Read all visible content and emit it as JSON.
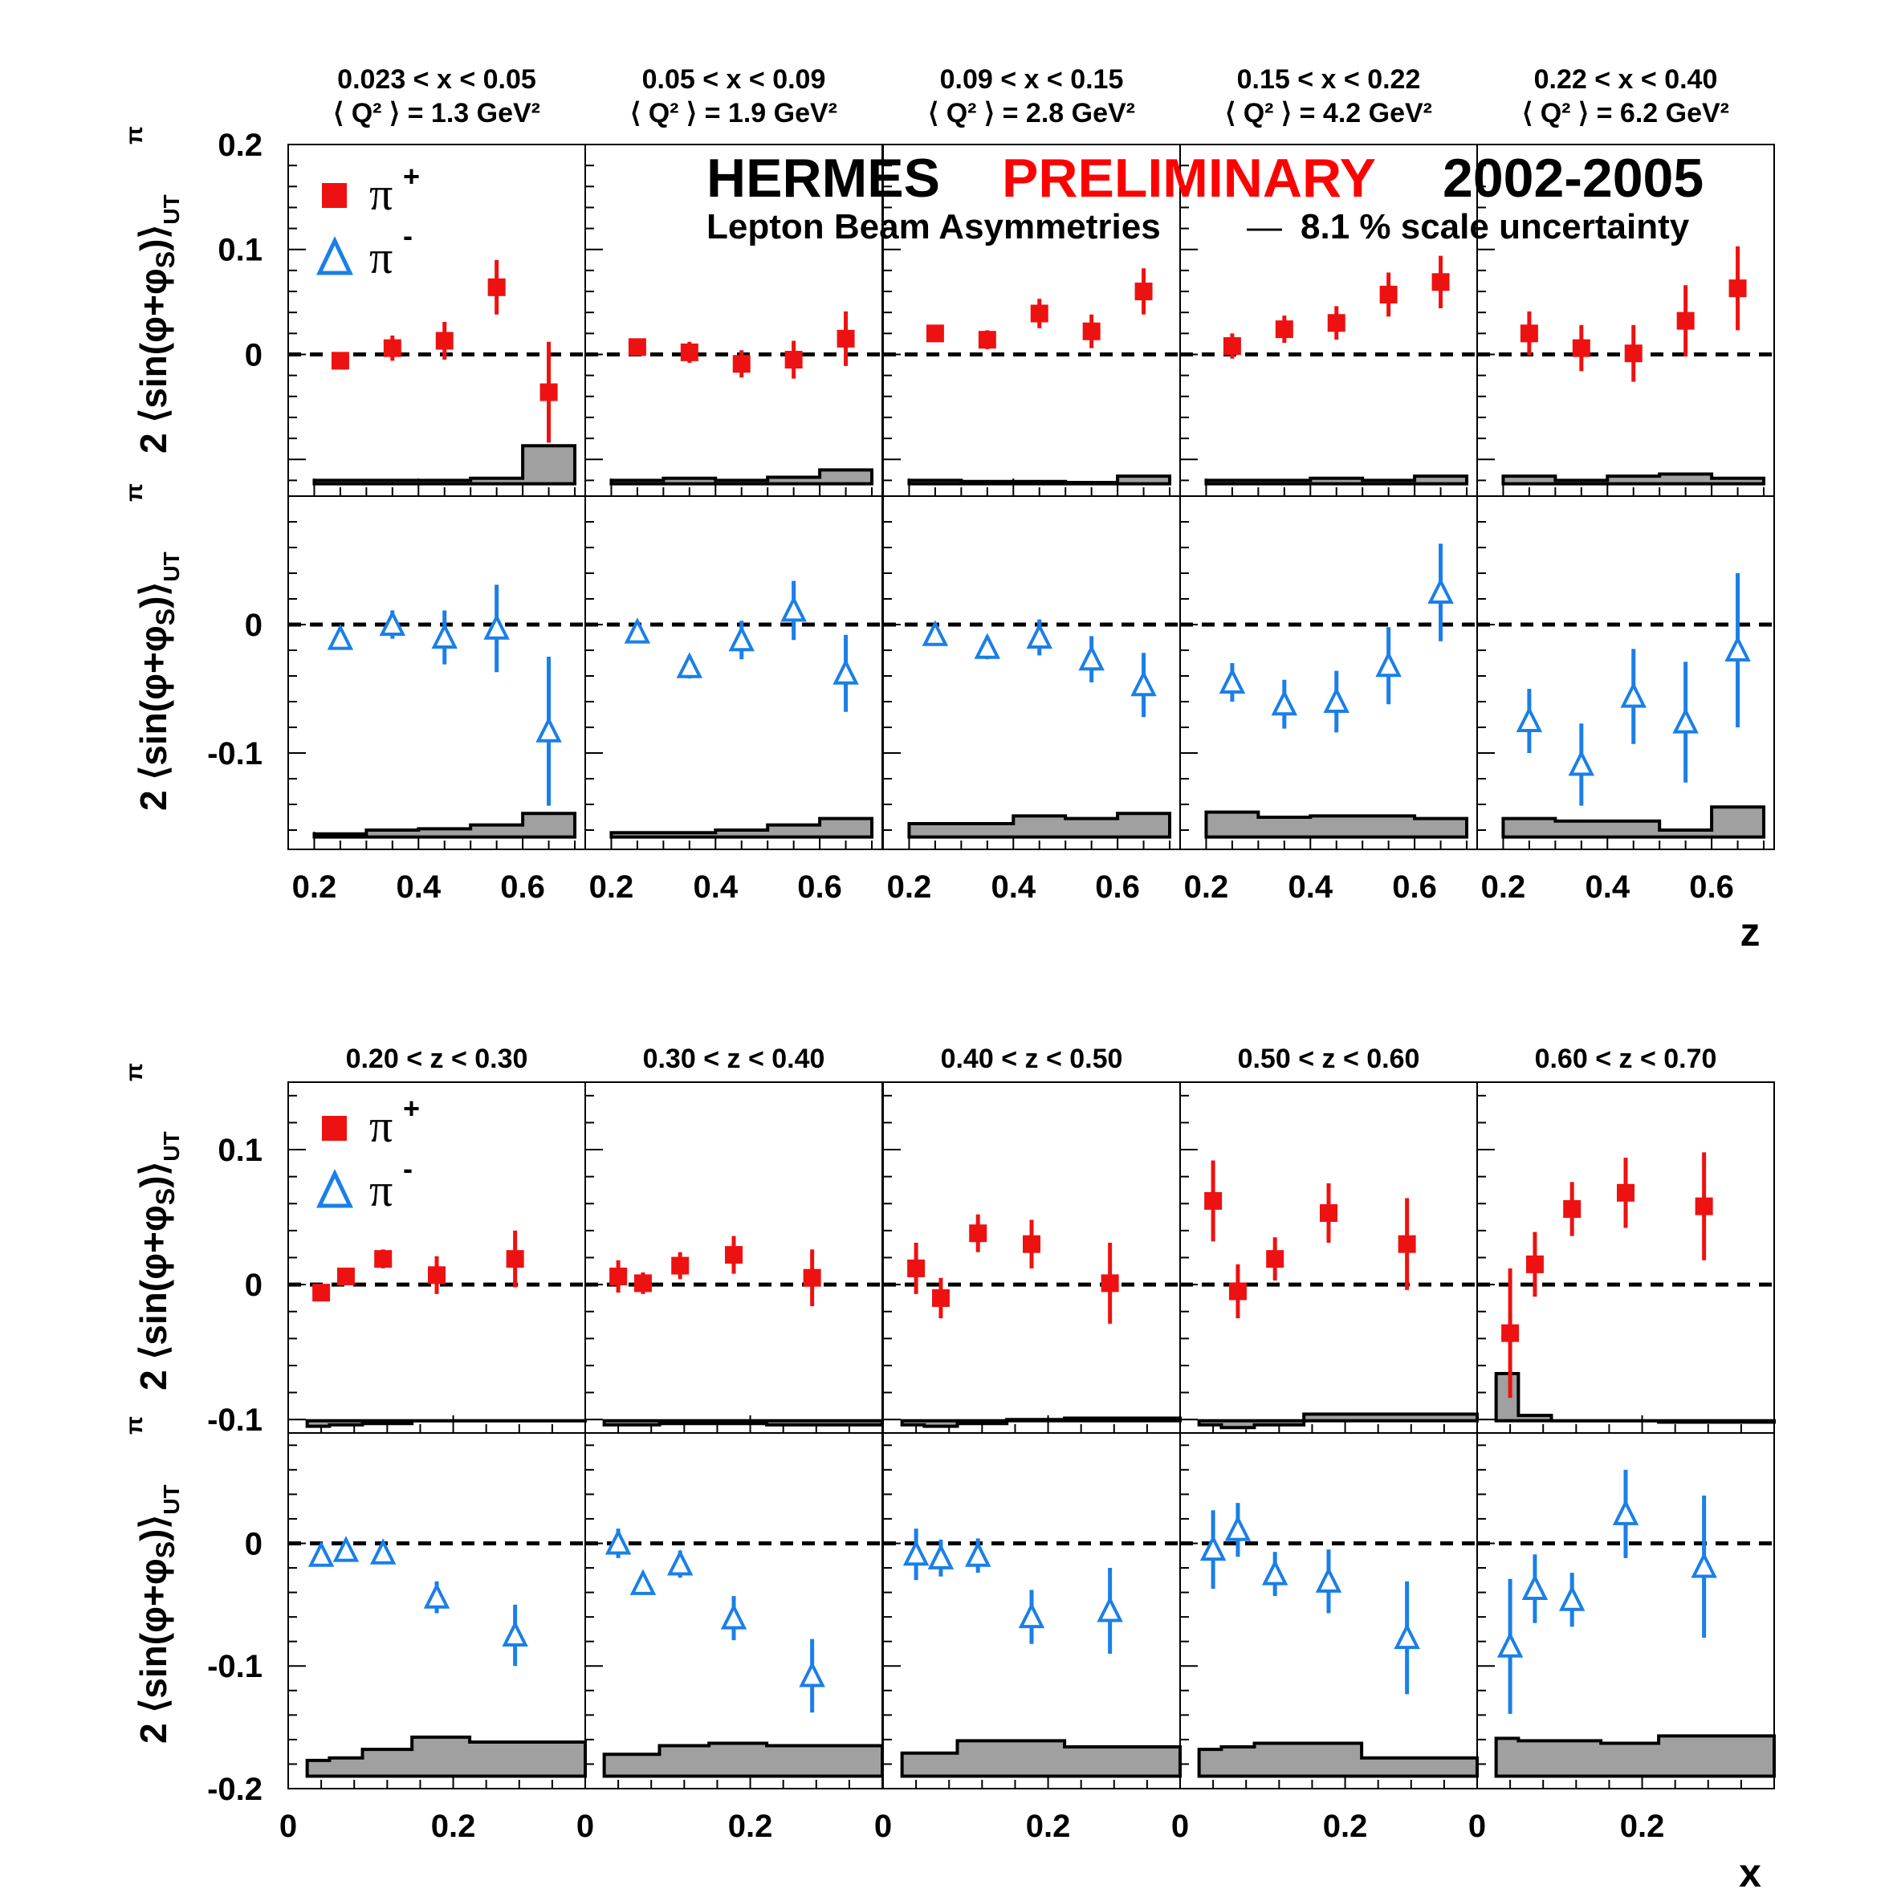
{
  "banner": {
    "word1": "HERMES",
    "word2": "PRELIMINARY",
    "word3": "2002-2005",
    "subtitle": "Lepton Beam Asymmetries",
    "dash": "—",
    "scale_note": "8.1 % scale uncertainty",
    "colors": {
      "word1": "#000000",
      "word2": "#ff0000",
      "word3": "#000000"
    }
  },
  "legend": {
    "pi_plus": "π",
    "pi_plus_sup": "+",
    "pi_minus": "π",
    "pi_minus_sup": "-"
  },
  "colors": {
    "pi_plus": "#ee1111",
    "pi_minus": "#1a7fe8",
    "band_fill": "#a0a0a0",
    "zero_line": "#000000"
  },
  "ylabel": {
    "prefix": "2 ⟨sin(φ+φ",
    "sub": "S",
    "suffix": ")⟩",
    "sup": "π",
    "subUT": "UT"
  },
  "chart_data": [
    {
      "type": "scatter",
      "panel_group": "z-dependence",
      "xlabel": "z",
      "xlim": [
        0.15,
        0.72
      ],
      "x_ticks": [
        "0.2",
        "0.4",
        "0.6"
      ],
      "panel_titles": [
        {
          "line1": "0.023 < x < 0.05",
          "line2": "⟨ Q² ⟩ = 1.3 GeV²"
        },
        {
          "line1": "0.05 < x < 0.09",
          "line2": "⟨ Q² ⟩ = 1.9 GeV²"
        },
        {
          "line1": "0.09 < x < 0.15",
          "line2": "⟨ Q² ⟩ = 2.8 GeV²"
        },
        {
          "line1": "0.15 < x < 0.22",
          "line2": "⟨ Q² ⟩ = 4.2 GeV²"
        },
        {
          "line1": "0.22 < x < 0.40",
          "line2": "⟨ Q² ⟩ = 6.2 GeV²"
        }
      ],
      "bin_edges": [
        0.2,
        0.3,
        0.4,
        0.5,
        0.6,
        0.7
      ],
      "top_row": {
        "ylim": [
          -0.135,
          0.2
        ],
        "y_ticks": [
          0.2,
          0,
          0.1
        ],
        "y_tick_labels": [
          "0.2",
          "0",
          "0.1"
        ],
        "series": [
          {
            "name": "π+",
            "panels": [
              {
                "x": [
                  0.25,
                  0.35,
                  0.45,
                  0.55,
                  0.65
                ],
                "y": [
                  -0.006,
                  0.006,
                  0.013,
                  0.064,
                  -0.036
                ],
                "err": [
                  0.008,
                  0.012,
                  0.018,
                  0.026,
                  0.048
                ],
                "band": [
                  -0.12,
                  -0.12,
                  -0.12,
                  -0.118,
                  -0.087
                ]
              },
              {
                "x": [
                  0.25,
                  0.35,
                  0.45,
                  0.55,
                  0.65
                ],
                "y": [
                  0.007,
                  0.002,
                  -0.009,
                  -0.005,
                  0.015
                ],
                "err": [
                  0.006,
                  0.01,
                  0.013,
                  0.018,
                  0.026
                ],
                "band": [
                  -0.12,
                  -0.118,
                  -0.12,
                  -0.117,
                  -0.11
                ]
              },
              {
                "x": [
                  0.25,
                  0.35,
                  0.45,
                  0.55,
                  0.65
                ],
                "y": [
                  0.02,
                  0.014,
                  0.039,
                  0.022,
                  0.06
                ],
                "err": [
                  0.008,
                  0.009,
                  0.014,
                  0.016,
                  0.022
                ],
                "band": [
                  -0.12,
                  -0.121,
                  -0.121,
                  -0.122,
                  -0.116
                ]
              },
              {
                "x": [
                  0.25,
                  0.35,
                  0.45,
                  0.55,
                  0.65
                ],
                "y": [
                  0.008,
                  0.024,
                  0.03,
                  0.057,
                  0.069
                ],
                "err": [
                  0.012,
                  0.013,
                  0.016,
                  0.021,
                  0.025
                ],
                "band": [
                  -0.12,
                  -0.12,
                  -0.118,
                  -0.12,
                  -0.116
                ]
              },
              {
                "x": [
                  0.25,
                  0.35,
                  0.45,
                  0.55,
                  0.65
                ],
                "y": [
                  0.02,
                  0.006,
                  0.001,
                  0.032,
                  0.063
                ],
                "err": [
                  0.021,
                  0.022,
                  0.027,
                  0.034,
                  0.04
                ],
                "band": [
                  -0.116,
                  -0.12,
                  -0.116,
                  -0.114,
                  -0.118
                ]
              }
            ]
          }
        ]
      },
      "bottom_row": {
        "ylim": [
          -0.175,
          0.1
        ],
        "y_ticks": [
          0,
          -0.1
        ],
        "y_tick_labels": [
          "0",
          "-0.1"
        ],
        "series": [
          {
            "name": "π-",
            "panels": [
              {
                "x": [
                  0.25,
                  0.35,
                  0.45,
                  0.55,
                  0.65
                ],
                "y": [
                  -0.011,
                  0.0,
                  -0.01,
                  -0.003,
                  -0.083
                ],
                "err": [
                  0.006,
                  0.011,
                  0.021,
                  0.034,
                  0.058
                ],
                "band": [
                  -0.163,
                  -0.16,
                  -0.159,
                  -0.156,
                  -0.147
                ]
              },
              {
                "x": [
                  0.25,
                  0.35,
                  0.45,
                  0.55,
                  0.65
                ],
                "y": [
                  -0.006,
                  -0.033,
                  -0.012,
                  0.011,
                  -0.038
                ],
                "err": [
                  0.005,
                  0.009,
                  0.015,
                  0.023,
                  0.03
                ],
                "band": [
                  -0.162,
                  -0.162,
                  -0.16,
                  -0.156,
                  -0.151
                ]
              },
              {
                "x": [
                  0.25,
                  0.35,
                  0.45,
                  0.55,
                  0.65
                ],
                "y": [
                  -0.008,
                  -0.018,
                  -0.01,
                  -0.027,
                  -0.047
                ],
                "err": [
                  0.006,
                  0.009,
                  0.014,
                  0.018,
                  0.025
                ],
                "band": [
                  -0.155,
                  -0.155,
                  -0.149,
                  -0.151,
                  -0.147
                ]
              },
              {
                "x": [
                  0.25,
                  0.35,
                  0.45,
                  0.55,
                  0.65
                ],
                "y": [
                  -0.045,
                  -0.062,
                  -0.06,
                  -0.032,
                  0.025
                ],
                "err": [
                  0.015,
                  0.019,
                  0.024,
                  0.03,
                  0.038
                ],
                "band": [
                  -0.146,
                  -0.15,
                  -0.149,
                  -0.149,
                  -0.151
                ]
              },
              {
                "x": [
                  0.25,
                  0.35,
                  0.45,
                  0.55,
                  0.65
                ],
                "y": [
                  -0.075,
                  -0.109,
                  -0.056,
                  -0.076,
                  -0.02
                ],
                "err": [
                  0.025,
                  0.032,
                  0.037,
                  0.047,
                  0.06
                ],
                "band": [
                  -0.151,
                  -0.153,
                  -0.153,
                  -0.16,
                  -0.142
                ]
              }
            ]
          }
        ]
      },
      "legend": [
        "π+",
        "π-"
      ]
    },
    {
      "type": "scatter",
      "panel_group": "x-dependence",
      "xlabel": "x",
      "xlim": [
        0,
        0.36
      ],
      "x_ticks": [
        "0",
        "0.2"
      ],
      "panel_titles": [
        {
          "line1": "0.20 < z < 0.30"
        },
        {
          "line1": "0.30 < z < 0.40"
        },
        {
          "line1": "0.40 < z < 0.50"
        },
        {
          "line1": "0.50 < z < 0.60"
        },
        {
          "line1": "0.60 < z < 0.70"
        }
      ],
      "bin_edges": [
        0.023,
        0.05,
        0.09,
        0.15,
        0.22,
        0.4
      ],
      "top_row": {
        "ylim": [
          -0.11,
          0.15
        ],
        "y_ticks": [
          0.1,
          0,
          -0.1
        ],
        "y_tick_labels": [
          "0.1",
          "0",
          "-0.1"
        ],
        "series": [
          {
            "name": "π+",
            "panels": [
              {
                "x": [
                  0.04,
                  0.07,
                  0.115,
                  0.18,
                  0.275
                ],
                "y": [
                  -0.006,
                  0.006,
                  0.019,
                  0.007,
                  0.019
                ],
                "err": [
                  0.006,
                  0.005,
                  0.007,
                  0.014,
                  0.021
                ],
                "band": [
                  -0.105,
                  -0.104,
                  -0.103,
                  -0.101,
                  -0.101
                ]
              },
              {
                "x": [
                  0.04,
                  0.07,
                  0.115,
                  0.18,
                  0.275
                ],
                "y": [
                  0.006,
                  0.001,
                  0.014,
                  0.022,
                  0.005
                ],
                "err": [
                  0.012,
                  0.008,
                  0.01,
                  0.014,
                  0.021
                ],
                "band": [
                  -0.104,
                  -0.104,
                  -0.103,
                  -0.103,
                  -0.104
                ]
              },
              {
                "x": [
                  0.04,
                  0.07,
                  0.115,
                  0.18,
                  0.275
                ],
                "y": [
                  0.012,
                  -0.01,
                  0.038,
                  0.03,
                  0.001
                ],
                "err": [
                  0.019,
                  0.015,
                  0.014,
                  0.018,
                  0.03
                ],
                "band": [
                  -0.104,
                  -0.105,
                  -0.103,
                  -0.1,
                  -0.099
                ]
              },
              {
                "x": [
                  0.04,
                  0.07,
                  0.115,
                  0.18,
                  0.275
                ],
                "y": [
                  0.062,
                  -0.005,
                  0.019,
                  0.053,
                  0.03
                ],
                "err": [
                  0.03,
                  0.02,
                  0.016,
                  0.022,
                  0.034
                ],
                "band": [
                  -0.104,
                  -0.106,
                  -0.104,
                  -0.096,
                  -0.096
                ]
              },
              {
                "x": [
                  0.04,
                  0.07,
                  0.115,
                  0.18,
                  0.275
                ],
                "y": [
                  -0.036,
                  0.015,
                  0.056,
                  0.068,
                  0.058
                ],
                "err": [
                  0.048,
                  0.024,
                  0.02,
                  0.026,
                  0.04
                ],
                "band": [
                  -0.066,
                  -0.097,
                  -0.101,
                  -0.101,
                  -0.102
                ]
              }
            ]
          }
        ]
      },
      "bottom_row": {
        "ylim": [
          -0.2,
          0.09
        ],
        "y_ticks": [
          0,
          -0.1,
          -0.2
        ],
        "y_tick_labels": [
          "0",
          "-0.1",
          "-0.2"
        ],
        "series": [
          {
            "name": "π-",
            "panels": [
              {
                "x": [
                  0.04,
                  0.07,
                  0.115,
                  0.18,
                  0.275
                ],
                "y": [
                  -0.01,
                  -0.006,
                  -0.008,
                  -0.044,
                  -0.075
                ],
                "err": [
                  0.005,
                  0.004,
                  0.007,
                  0.013,
                  0.025
                ],
                "band": [
                  -0.177,
                  -0.175,
                  -0.168,
                  -0.158,
                  -0.162
                ]
              },
              {
                "x": [
                  0.04,
                  0.07,
                  0.115,
                  0.18,
                  0.275
                ],
                "y": [
                  0.0,
                  -0.033,
                  -0.017,
                  -0.061,
                  -0.108
                ],
                "err": [
                  0.012,
                  0.009,
                  0.011,
                  0.018,
                  0.03
                ],
                "band": [
                  -0.172,
                  -0.172,
                  -0.165,
                  -0.163,
                  -0.165
                ]
              },
              {
                "x": [
                  0.04,
                  0.07,
                  0.115,
                  0.18,
                  0.275
                ],
                "y": [
                  -0.009,
                  -0.012,
                  -0.01,
                  -0.06,
                  -0.055
                ],
                "err": [
                  0.021,
                  0.015,
                  0.014,
                  0.022,
                  0.035
                ],
                "band": [
                  -0.171,
                  -0.171,
                  -0.161,
                  -0.161,
                  -0.166
                ]
              },
              {
                "x": [
                  0.04,
                  0.07,
                  0.115,
                  0.18,
                  0.275
                ],
                "y": [
                  -0.005,
                  0.011,
                  -0.025,
                  -0.031,
                  -0.077
                ],
                "err": [
                  0.032,
                  0.022,
                  0.018,
                  0.026,
                  0.046
                ],
                "band": [
                  -0.168,
                  -0.166,
                  -0.163,
                  -0.163,
                  -0.175
                ]
              },
              {
                "x": [
                  0.04,
                  0.07,
                  0.115,
                  0.18,
                  0.275
                ],
                "y": [
                  -0.084,
                  -0.037,
                  -0.046,
                  0.024,
                  -0.019
                ],
                "err": [
                  0.055,
                  0.028,
                  0.022,
                  0.036,
                  0.058
                ],
                "band": [
                  -0.159,
                  -0.161,
                  -0.161,
                  -0.163,
                  -0.157
                ]
              }
            ]
          }
        ]
      },
      "legend": [
        "π+",
        "π-"
      ]
    }
  ]
}
